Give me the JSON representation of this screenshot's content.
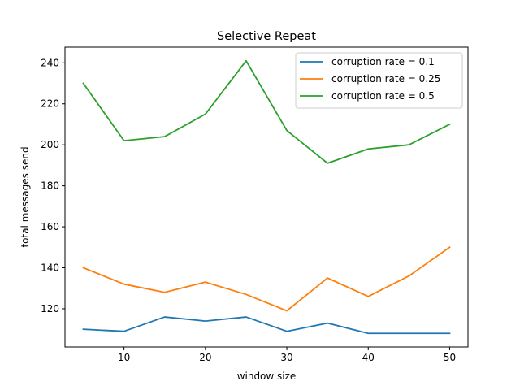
{
  "chart_data": {
    "type": "line",
    "title": "Selective Repeat",
    "xlabel": "window size",
    "ylabel": "total messages send",
    "x": [
      5,
      10,
      15,
      20,
      25,
      30,
      35,
      40,
      45,
      50
    ],
    "xlim": [
      2.75,
      52.25
    ],
    "ylim": [
      101.35,
      247.65
    ],
    "xticks": [
      10,
      20,
      30,
      40,
      50
    ],
    "yticks": [
      120,
      140,
      160,
      180,
      200,
      220,
      240
    ],
    "grid": false,
    "legend_position": "top-right",
    "series": [
      {
        "name": "corruption rate = 0.1",
        "color": "#1f77b4",
        "values": [
          110,
          109,
          116,
          114,
          116,
          109,
          113,
          108,
          108,
          108
        ]
      },
      {
        "name": "corruption rate = 0.25",
        "color": "#ff7f0e",
        "values": [
          140,
          132,
          128,
          133,
          127,
          119,
          135,
          126,
          136,
          150
        ]
      },
      {
        "name": "corruption rate = 0.5",
        "color": "#2ca02c",
        "values": [
          230,
          202,
          204,
          215,
          241,
          207,
          191,
          198,
          200,
          210
        ]
      }
    ]
  }
}
